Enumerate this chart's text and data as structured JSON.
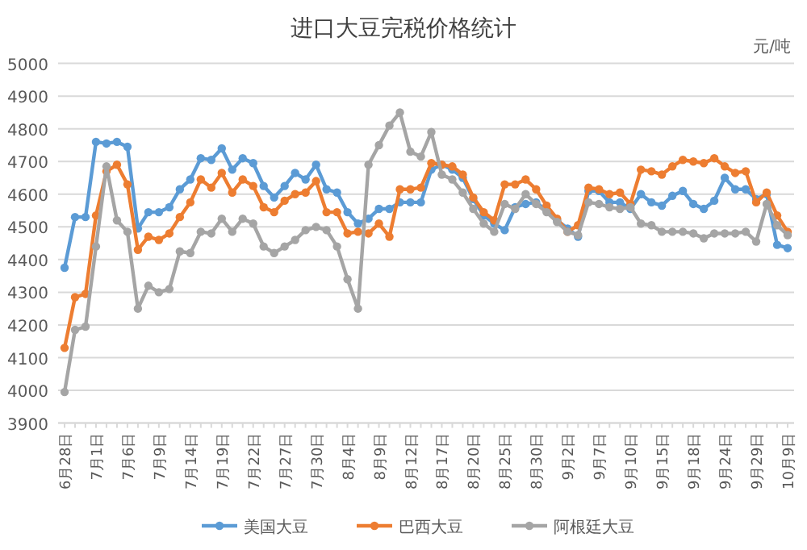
{
  "chart_data": {
    "type": "line",
    "title": "进口大豆完税价格统计",
    "ylabel": "元/吨",
    "categories": [
      "6月28日",
      null,
      null,
      "7月1日",
      null,
      null,
      "7月6日",
      null,
      null,
      "7月9日",
      null,
      null,
      "7月14日",
      null,
      null,
      "7月19日",
      null,
      null,
      "7月22日",
      null,
      null,
      "7月27日",
      null,
      null,
      "7月30日",
      null,
      null,
      "8月4日",
      null,
      null,
      "8月9日",
      null,
      null,
      "8月12日",
      null,
      null,
      "8月17日",
      null,
      null,
      "8月20日",
      null,
      null,
      "8月25日",
      null,
      null,
      "8月30日",
      null,
      null,
      "9月2日",
      null,
      null,
      "9月7日",
      null,
      null,
      "9月10日",
      null,
      null,
      "9月15日",
      null,
      null,
      "9月18日",
      null,
      null,
      "9月24日",
      null,
      null,
      "9月29日",
      null,
      null,
      "10月9日"
    ],
    "series": [
      {
        "name": "美国大豆",
        "color": "#5b9bd5",
        "values": [
          4375,
          4530,
          4530,
          4760,
          4755,
          4760,
          4745,
          4495,
          4545,
          4545,
          4560,
          4615,
          4645,
          4710,
          4705,
          4740,
          4675,
          4710,
          4695,
          4625,
          4590,
          4625,
          4665,
          4645,
          4690,
          4615,
          4605,
          4545,
          4510,
          4525,
          4555,
          4555,
          4575,
          4575,
          4575,
          4675,
          4690,
          4675,
          4650,
          4585,
          4535,
          4510,
          4490,
          4560,
          4570,
          4575,
          4550,
          4520,
          4495,
          4470,
          4610,
          4610,
          4575,
          4575,
          4555,
          4600,
          4575,
          4565,
          4595,
          4610,
          4570,
          4555,
          4580,
          4650,
          4615,
          4615,
          4585,
          4600,
          4445,
          4435
        ]
      },
      {
        "name": "巴西大豆",
        "color": "#ed7d31",
        "values": [
          4130,
          4285,
          4295,
          4535,
          4670,
          4690,
          4630,
          4430,
          4470,
          4460,
          4480,
          4530,
          4575,
          4645,
          4620,
          4665,
          4605,
          4645,
          4625,
          4560,
          4545,
          4580,
          4600,
          4605,
          4640,
          4545,
          4545,
          4480,
          4485,
          4480,
          4510,
          4470,
          4615,
          4615,
          4620,
          4695,
          4690,
          4685,
          4660,
          4590,
          4545,
          4520,
          4630,
          4630,
          4645,
          4615,
          4565,
          4525,
          4485,
          4505,
          4620,
          4615,
          4600,
          4605,
          4570,
          4675,
          4670,
          4660,
          4685,
          4705,
          4700,
          4695,
          4710,
          4685,
          4665,
          4670,
          4575,
          4605,
          4535,
          4485
        ]
      },
      {
        "name": "阿根廷大豆",
        "color": "#a5a5a5",
        "values": [
          3995,
          4185,
          4195,
          4440,
          4685,
          4520,
          4485,
          4250,
          4320,
          4300,
          4310,
          4425,
          4420,
          4485,
          4480,
          4525,
          4485,
          4525,
          4510,
          4440,
          4420,
          4440,
          4460,
          4490,
          4500,
          4490,
          4440,
          4340,
          4250,
          4690,
          4750,
          4810,
          4850,
          4730,
          4715,
          4790,
          4660,
          4645,
          4605,
          4555,
          4510,
          4485,
          4570,
          4555,
          4600,
          4570,
          4545,
          4515,
          4485,
          4475,
          4575,
          4570,
          4560,
          4555,
          4560,
          4510,
          4505,
          4485,
          4485,
          4485,
          4480,
          4465,
          4480,
          4480,
          4480,
          4485,
          4455,
          4570,
          4505,
          4475
        ]
      }
    ],
    "ylim": [
      3900,
      5000
    ],
    "yticks": [
      3900,
      4000,
      4100,
      4200,
      4300,
      4400,
      4500,
      4600,
      4700,
      4800,
      4900,
      5000
    ],
    "grid": "y",
    "legend": "bottom",
    "marker": "circle",
    "line_style": "solid"
  }
}
